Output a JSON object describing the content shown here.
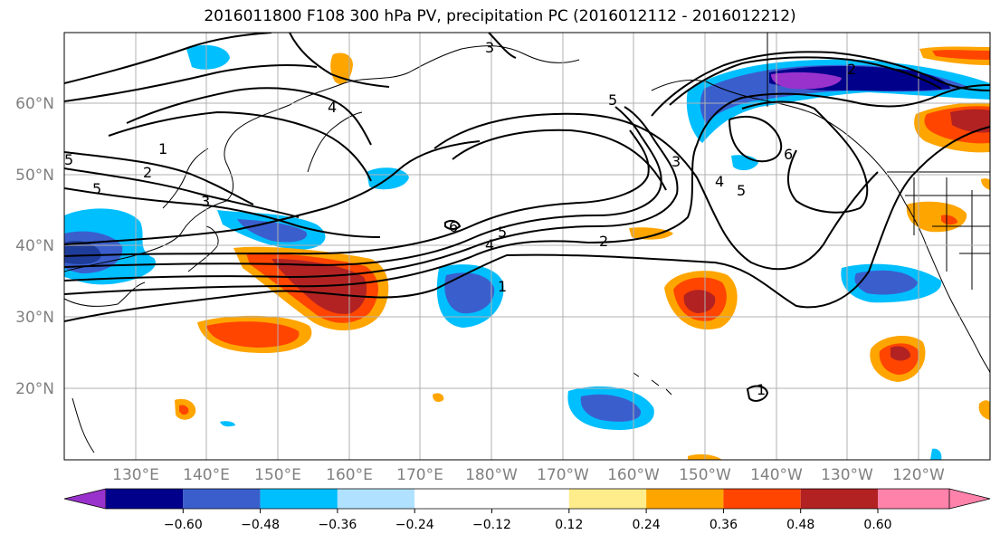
{
  "title": "2016011800 F108 300 hPa PV, precipitation PC (2016012112 - 2016012212)",
  "map": {
    "lat_labels": [
      "60°N",
      "50°N",
      "40°N",
      "30°N",
      "20°N"
    ],
    "lon_labels": [
      "130°E",
      "140°E",
      "150°E",
      "160°E",
      "170°E",
      "180°W",
      "170°W",
      "160°W",
      "150°W",
      "140°W",
      "130°W",
      "120°W"
    ],
    "pv_contour_labels": [
      "1",
      "2",
      "3",
      "4",
      "5",
      "6"
    ]
  },
  "colorbar": {
    "colors": [
      "#9932CC",
      "#00008B",
      "#3A5FCD",
      "#00BFFF",
      "#B0E2FF",
      "#FFFFFF",
      "#FFFFFF",
      "#FFEC8B",
      "#FFA500",
      "#FF4500",
      "#B22222",
      "#FF82AB"
    ],
    "tick_labels": [
      "−0.60",
      "−0.48",
      "−0.36",
      "−0.24",
      "−0.12",
      "0.12",
      "0.24",
      "0.36",
      "0.48",
      "0.60"
    ]
  }
}
